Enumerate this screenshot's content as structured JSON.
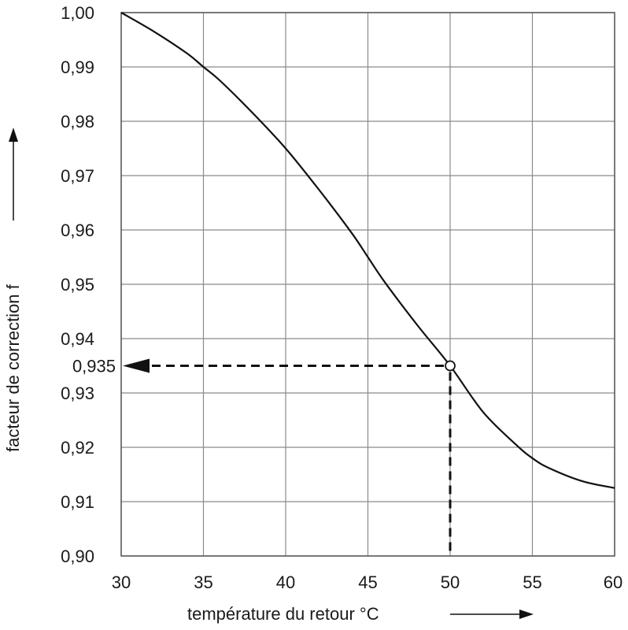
{
  "chart_data": {
    "type": "line",
    "title": "",
    "xlabel": "température du retour °C",
    "ylabel": "facteur de correction f",
    "xlim": [
      30,
      60
    ],
    "ylim": [
      0.9,
      1.0
    ],
    "grid": true,
    "x_ticks": [
      "30",
      "35",
      "40",
      "45",
      "50",
      "55",
      "60"
    ],
    "y_ticks": [
      "0,90",
      "0,91",
      "0,92",
      "0,93",
      "0,94",
      "0,95",
      "0,96",
      "0,97",
      "0,98",
      "0,99",
      "1,00"
    ],
    "series": [
      {
        "x": [
          30,
          32,
          34,
          35,
          36,
          38,
          40,
          42,
          44,
          45,
          46,
          48,
          50,
          52,
          54,
          55,
          56,
          58,
          60
        ],
        "y": [
          1.0,
          0.9965,
          0.9925,
          0.99,
          0.9875,
          0.9815,
          0.975,
          0.9675,
          0.9595,
          0.955,
          0.9505,
          0.9425,
          0.935,
          0.9265,
          0.9205,
          0.918,
          0.9162,
          0.9138,
          0.9125
        ]
      }
    ],
    "annotation": {
      "x": 50,
      "y": 0.935,
      "label": "0,935"
    },
    "colors": {
      "line": "#111111",
      "grid": "#8a8a8a",
      "text": "#1a1a1a"
    }
  }
}
